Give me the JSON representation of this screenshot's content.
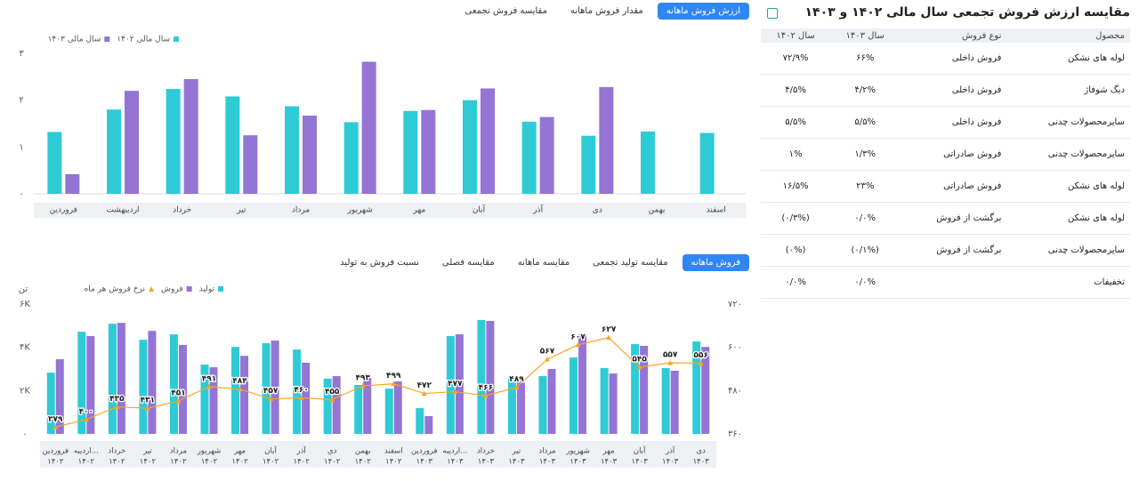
{
  "top_tabs": [
    "ارزش فروش ماهانه",
    "مقدار فروش ماهانه",
    "مقایسه فروش تجمعی"
  ],
  "bottom_tabs": [
    "فروش ماهانه",
    "مقایسه تولید تجمعی",
    "مقایسه ماهانه",
    "مقایسه فصلی",
    "نسبت فروش به تولید"
  ],
  "table": {
    "title": "مقایسه ارزش فروش تجمعی سال مالی ۱۴۰۲ و ۱۴۰۳",
    "columns": [
      "محصول",
      "نوع فروش",
      "سال ۱۴۰۳",
      "سال ۱۴۰۲"
    ],
    "rows": [
      [
        "لوله های نشکن",
        "فروش داخلی",
        "۶۶%",
        "۷۲/۹%"
      ],
      [
        "دیگ شوفاژ",
        "فروش داخلی",
        "۴/۲%",
        "۴/۵%"
      ],
      [
        "سایرمحصولات چدنی",
        "فروش داخلی",
        "۵/۵%",
        "۵/۵%"
      ],
      [
        "سایرمحصولات چدنی",
        "فروش صادراتی",
        "۱/۳%",
        "۱%"
      ],
      [
        "لوله های نشکن",
        "فروش صادراتی",
        "۲۳%",
        "۱۶/۵%"
      ],
      [
        "لوله های نشکن",
        "برگشت از فروش",
        "۰/۰%",
        "(۰/۳%)"
      ],
      [
        "سایرمحصولات چدنی",
        "برگشت از فروش",
        "(۰/۱%)",
        "(۰%)"
      ],
      [
        "تخفیفات",
        "",
        "۰/۰%",
        "۰/۰%"
      ]
    ]
  },
  "chart_data": [
    {
      "type": "bar",
      "categories": [
        "فروردین",
        "اردیبهشت",
        "خرداد",
        "تیر",
        "مرداد",
        "شهریور",
        "مهر",
        "آبان",
        "آذر",
        "دی",
        "بهمن",
        "اسفند"
      ],
      "series": [
        {
          "name": "سال مالی ۱۴۰۲",
          "color": "#2ecbd6",
          "values": [
            1.32,
            1.8,
            2.24,
            2.08,
            1.87,
            1.53,
            1.77,
            2.0,
            1.54,
            1.24,
            1.33,
            1.3
          ]
        },
        {
          "name": "سال مالی ۱۴۰۳",
          "color": "#9474d4",
          "values": [
            0.42,
            2.2,
            2.45,
            1.25,
            1.67,
            2.82,
            1.79,
            2.25,
            1.64,
            2.28,
            null,
            null
          ]
        }
      ],
      "ylim": [
        0,
        3
      ],
      "yticks": [
        {
          "value": 0,
          "label": "۰"
        },
        {
          "value": 1,
          "label": "۱"
        },
        {
          "value": 2,
          "label": "۲"
        },
        {
          "value": 3,
          "label": "۳"
        }
      ],
      "grid": false
    },
    {
      "type": "combo",
      "y_label": "تن",
      "categories": [
        [
          "فروردین",
          "۱۴۰۲"
        ],
        [
          "اردیبه...",
          "۱۴۰۲"
        ],
        [
          "خرداد",
          "۱۴۰۲"
        ],
        [
          "تیر",
          "۱۴۰۲"
        ],
        [
          "مرداد",
          "۱۴۰۲"
        ],
        [
          "شهریور",
          "۱۴۰۲"
        ],
        [
          "مهر",
          "۱۴۰۲"
        ],
        [
          "آبان",
          "۱۴۰۲"
        ],
        [
          "آذر",
          "۱۴۰۲"
        ],
        [
          "دی",
          "۱۴۰۲"
        ],
        [
          "بهمن",
          "۱۴۰۲"
        ],
        [
          "اسفند",
          "۱۴۰۲"
        ],
        [
          "فروردین",
          "۱۴۰۳"
        ],
        [
          "اردیبه...",
          "۱۴۰۳"
        ],
        [
          "خرداد",
          "۱۴۰۳"
        ],
        [
          "تیر",
          "۱۴۰۳"
        ],
        [
          "مرداد",
          "۱۴۰۳"
        ],
        [
          "شهریور",
          "۱۴۰۳"
        ],
        [
          "مهر",
          "۱۴۰۳"
        ],
        [
          "آبان",
          "۱۴۰۳"
        ],
        [
          "آذر",
          "۱۴۰۳"
        ],
        [
          "دی",
          "۱۴۰۳"
        ]
      ],
      "series": [
        {
          "name": "تولید",
          "color": "#2ecbd6",
          "type": "bar",
          "values": [
            2830,
            4720,
            5090,
            4350,
            4600,
            3200,
            4020,
            4190,
            3900,
            2550,
            2260,
            2090,
            1190,
            4520,
            5260,
            2590,
            2670,
            3530,
            3040,
            4150,
            3040,
            4270
          ]
        },
        {
          "name": "فروش",
          "color": "#9474d4",
          "type": "bar",
          "values": [
            3450,
            4520,
            5130,
            4760,
            4110,
            3080,
            3610,
            4310,
            3290,
            2670,
            2590,
            2420,
            820,
            4600,
            5220,
            2510,
            3000,
            4600,
            2790,
            4070,
            2920,
            4020
          ]
        },
        {
          "name": "نرخ فروش هر ماه",
          "color": "#f5a623",
          "type": "line",
          "axis": "y2",
          "values": [
            379,
            400,
            435,
            431,
            451,
            491,
            484,
            457,
            460,
            455,
            493,
            499,
            472,
            477,
            466,
            489,
            567,
            607,
            627,
            545,
            557,
            556
          ],
          "value_labels": [
            "۳۷۹",
            "۴۰۰",
            "۴۳۵",
            "۴۳۱",
            "۴۵۱",
            "۴۹۱",
            "۴۸۴",
            "۴۵۷",
            "۴۶۰",
            "۴۵۵",
            "۴۹۳",
            "۴۹۹",
            "۴۷۲",
            "۴۷۷",
            "۴۶۶",
            "۴۸۹",
            "۵۶۷",
            "۶۰۷",
            "۶۲۷",
            "۵۴۵",
            "۵۵۷",
            "۵۵۶"
          ]
        }
      ],
      "ylim": [
        0,
        6000
      ],
      "yticks": [
        {
          "value": 0,
          "label": "۰"
        },
        {
          "value": 2000,
          "label": "۲K"
        },
        {
          "value": 4000,
          "label": "۴K"
        },
        {
          "value": 6000,
          "label": "۶K"
        }
      ],
      "y2lim": [
        360,
        720
      ],
      "y2ticks": [
        {
          "value": 360,
          "label": "۳۶۰"
        },
        {
          "value": 480,
          "label": "۴۸۰"
        },
        {
          "value": 600,
          "label": "۶۰۰"
        },
        {
          "value": 720,
          "label": "۷۲۰"
        }
      ],
      "grid": false
    }
  ]
}
